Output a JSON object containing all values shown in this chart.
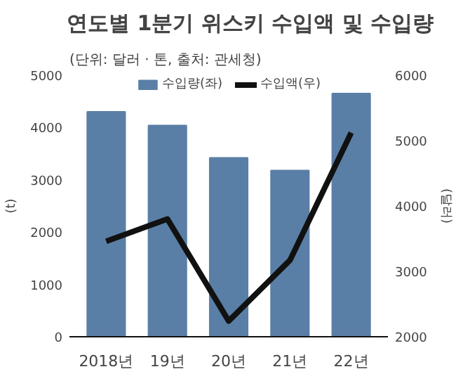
{
  "chart_data": {
    "type": "bar",
    "title": "연도별 1분기 위스키 수입액 및 수입량",
    "subtitle": "(단위: 달러 · 톤, 출처: 관세청)",
    "ylabel": "(t)",
    "y2label": "(달러)",
    "categories": [
      "2018년",
      "19년",
      "20년",
      "21년",
      "22년"
    ],
    "series": [
      {
        "name": "수입량(좌)",
        "color": "#5a7fa6",
        "values": [
          4300,
          4040,
          3420,
          3180,
          4650
        ]
      },
      {
        "name": "수입액(우)",
        "type": "line",
        "axis": "y2",
        "color": "#111111",
        "values": [
          3460,
          3800,
          2240,
          3170,
          5120
        ]
      }
    ],
    "ylim": [
      0,
      5000
    ],
    "yticks": [
      0,
      1000,
      2000,
      3000,
      4000,
      5000
    ],
    "y2lim": [
      2000,
      6000
    ],
    "y2ticks": [
      2000,
      3000,
      4000,
      5000,
      6000
    ],
    "grid": false,
    "legend": "top",
    "line_style": "solid",
    "marker": "none"
  }
}
